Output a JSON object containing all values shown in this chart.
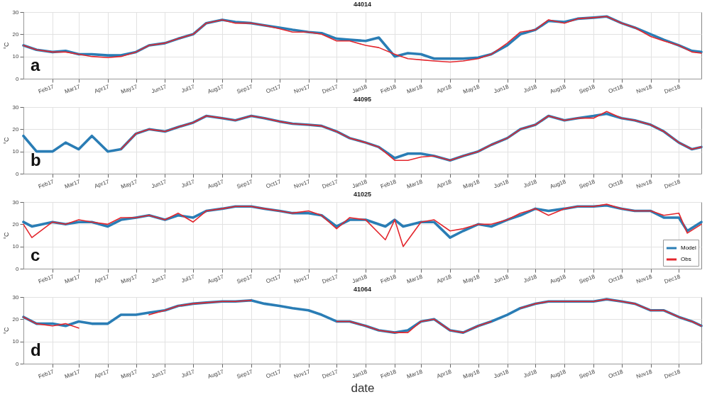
{
  "chart_data": [
    {
      "type": "line",
      "title": "44014",
      "ylabel": "°C",
      "annotations": [
        "a"
      ],
      "grid": true,
      "x": [
        "2017-01-01",
        "2017-01-15",
        "2017-02-01",
        "2017-02-15",
        "2017-03-01",
        "2017-03-15",
        "2017-04-01",
        "2017-04-15",
        "2017-05-01",
        "2017-05-15",
        "2017-06-01",
        "2017-06-15",
        "2017-07-01",
        "2017-07-15",
        "2017-08-01",
        "2017-08-15",
        "2017-09-01",
        "2017-09-15",
        "2017-10-01",
        "2017-10-15",
        "2017-11-01",
        "2017-11-15",
        "2017-12-01",
        "2017-12-15",
        "2018-01-01",
        "2018-01-15",
        "2018-02-01",
        "2018-02-15",
        "2018-03-01",
        "2018-03-15",
        "2018-04-01",
        "2018-04-15",
        "2018-05-01",
        "2018-05-15",
        "2018-06-01",
        "2018-06-15",
        "2018-07-01",
        "2018-07-15",
        "2018-08-01",
        "2018-08-15",
        "2018-09-01",
        "2018-09-15",
        "2018-10-01",
        "2018-10-15",
        "2018-11-01",
        "2018-11-15",
        "2018-12-01",
        "2018-12-15",
        "2018-12-25"
      ],
      "xlim": [
        "2017-01-01",
        "2018-12-25"
      ],
      "ylim": [
        0,
        30
      ],
      "yticks": [
        0,
        10,
        20,
        30
      ],
      "xticks": [
        {
          "value": "2017-02-01",
          "label": "Feb17"
        },
        {
          "value": "2017-03-01",
          "label": "Mar17"
        },
        {
          "value": "2017-04-01",
          "label": "Apr17"
        },
        {
          "value": "2017-05-01",
          "label": "May17"
        },
        {
          "value": "2017-06-01",
          "label": "Jun17"
        },
        {
          "value": "2017-07-01",
          "label": "Jul17"
        },
        {
          "value": "2017-08-01",
          "label": "Aug17"
        },
        {
          "value": "2017-09-01",
          "label": "Sep17"
        },
        {
          "value": "2017-10-01",
          "label": "Oct17"
        },
        {
          "value": "2017-11-01",
          "label": "Nov17"
        },
        {
          "value": "2017-12-01",
          "label": "Dec17"
        },
        {
          "value": "2018-01-01",
          "label": "Jan18"
        },
        {
          "value": "2018-02-01",
          "label": "Feb18"
        },
        {
          "value": "2018-03-01",
          "label": "Mar18"
        },
        {
          "value": "2018-04-01",
          "label": "Apr18"
        },
        {
          "value": "2018-05-01",
          "label": "May18"
        },
        {
          "value": "2018-06-01",
          "label": "Jun18"
        },
        {
          "value": "2018-07-01",
          "label": "Jul18"
        },
        {
          "value": "2018-08-01",
          "label": "Aug18"
        },
        {
          "value": "2018-09-01",
          "label": "Sep18"
        },
        {
          "value": "2018-10-01",
          "label": "Oct18"
        },
        {
          "value": "2018-11-01",
          "label": "Nov18"
        },
        {
          "value": "2018-12-01",
          "label": "Dec18"
        }
      ],
      "series": [
        {
          "color": "#2a7db5",
          "values": [
            15,
            13,
            12,
            12.5,
            11,
            11,
            10.5,
            10.5,
            12,
            15,
            16,
            18,
            20,
            25,
            26.5,
            25.5,
            25,
            24,
            23,
            22,
            21,
            20.5,
            18,
            17.5,
            17,
            18.5,
            10,
            11.5,
            11,
            9,
            9,
            9,
            9.5,
            11,
            15,
            20,
            22,
            26,
            25.5,
            27,
            27.5,
            28,
            25,
            23,
            20,
            17.5,
            15,
            12.5,
            12
          ]
        },
        {
          "color": "#e3262d",
          "values": [
            15,
            13,
            12,
            12,
            11,
            10,
            9.5,
            10,
            12,
            15,
            16,
            18,
            20,
            25,
            26.5,
            25,
            25,
            24,
            22.5,
            21,
            21,
            20,
            17,
            17,
            15,
            14,
            11,
            9,
            8.5,
            8,
            7.5,
            8,
            9,
            11,
            16,
            21,
            22,
            26.5,
            25,
            27,
            27.5,
            28,
            25,
            23,
            19,
            17,
            15,
            12,
            11.5
          ]
        }
      ]
    },
    {
      "type": "line",
      "title": "44095",
      "ylabel": "°C",
      "annotations": [
        "b"
      ],
      "grid": true,
      "x": [
        "2017-01-01",
        "2017-01-15",
        "2017-02-01",
        "2017-02-15",
        "2017-03-01",
        "2017-03-15",
        "2017-04-01",
        "2017-04-15",
        "2017-05-01",
        "2017-05-15",
        "2017-06-01",
        "2017-06-15",
        "2017-07-01",
        "2017-07-15",
        "2017-08-01",
        "2017-08-15",
        "2017-09-01",
        "2017-09-15",
        "2017-10-01",
        "2017-10-15",
        "2017-11-01",
        "2017-11-15",
        "2017-12-01",
        "2017-12-15",
        "2018-01-01",
        "2018-01-15",
        "2018-02-01",
        "2018-02-15",
        "2018-03-01",
        "2018-03-15",
        "2018-04-01",
        "2018-04-15",
        "2018-05-01",
        "2018-05-15",
        "2018-06-01",
        "2018-06-15",
        "2018-07-01",
        "2018-07-15",
        "2018-08-01",
        "2018-08-15",
        "2018-09-01",
        "2018-09-15",
        "2018-10-01",
        "2018-10-15",
        "2018-11-01",
        "2018-11-15",
        "2018-12-01",
        "2018-12-15",
        "2018-12-25"
      ],
      "xlim": [
        "2017-01-01",
        "2018-12-25"
      ],
      "ylim": [
        0,
        30
      ],
      "yticks": [
        0,
        10,
        20,
        30
      ],
      "xticks": [
        {
          "value": "2017-02-01",
          "label": "Feb17"
        },
        {
          "value": "2017-03-01",
          "label": "Mar17"
        },
        {
          "value": "2017-04-01",
          "label": "Apr17"
        },
        {
          "value": "2017-05-01",
          "label": "May17"
        },
        {
          "value": "2017-06-01",
          "label": "Jun17"
        },
        {
          "value": "2017-07-01",
          "label": "Jul17"
        },
        {
          "value": "2017-08-01",
          "label": "Aug17"
        },
        {
          "value": "2017-09-01",
          "label": "Sep17"
        },
        {
          "value": "2017-10-01",
          "label": "Oct17"
        },
        {
          "value": "2017-11-01",
          "label": "Nov17"
        },
        {
          "value": "2017-12-01",
          "label": "Dec17"
        },
        {
          "value": "2018-01-01",
          "label": "Jan18"
        },
        {
          "value": "2018-02-01",
          "label": "Feb18"
        },
        {
          "value": "2018-03-01",
          "label": "Mar18"
        },
        {
          "value": "2018-04-01",
          "label": "Apr18"
        },
        {
          "value": "2018-05-01",
          "label": "May18"
        },
        {
          "value": "2018-06-01",
          "label": "Jun18"
        },
        {
          "value": "2018-07-01",
          "label": "Jul18"
        },
        {
          "value": "2018-08-01",
          "label": "Aug18"
        },
        {
          "value": "2018-09-01",
          "label": "Sep18"
        },
        {
          "value": "2018-10-01",
          "label": "Oct18"
        },
        {
          "value": "2018-11-01",
          "label": "Nov18"
        },
        {
          "value": "2018-12-01",
          "label": "Dec18"
        }
      ],
      "series": [
        {
          "color": "#2a7db5",
          "values": [
            17,
            10,
            10,
            14,
            11,
            17,
            10,
            11,
            18,
            20,
            19,
            21,
            23,
            26,
            25,
            24,
            26,
            25,
            23.5,
            22.5,
            22,
            21.5,
            19,
            16,
            14,
            12,
            7,
            9,
            9,
            8,
            6,
            8,
            10,
            13,
            16,
            20,
            22,
            26,
            24,
            25,
            26,
            27,
            25,
            24,
            22,
            19,
            14,
            11,
            12
          ]
        },
        {
          "color": "#e3262d",
          "values": [
            null,
            null,
            null,
            null,
            null,
            null,
            null,
            11,
            18,
            20,
            19,
            21,
            23,
            26,
            25,
            24,
            26,
            25,
            23.5,
            22.5,
            22,
            21.5,
            19,
            16,
            14,
            12,
            6,
            6,
            7.5,
            8,
            6,
            8,
            10,
            13,
            16,
            20,
            22,
            26,
            24,
            25,
            25,
            28,
            25,
            24,
            22,
            19,
            14,
            11,
            12
          ]
        }
      ]
    },
    {
      "type": "line",
      "title": "41025",
      "ylabel": "°C",
      "annotations": [
        "c"
      ],
      "grid": true,
      "legend": "bottom right",
      "x": [
        "2017-01-01",
        "2017-01-10",
        "2017-02-01",
        "2017-02-15",
        "2017-03-01",
        "2017-03-15",
        "2017-04-01",
        "2017-04-15",
        "2017-05-01",
        "2017-05-15",
        "2017-06-01",
        "2017-06-15",
        "2017-07-01",
        "2017-07-15",
        "2017-08-01",
        "2017-08-15",
        "2017-09-01",
        "2017-09-15",
        "2017-10-01",
        "2017-10-15",
        "2017-11-01",
        "2017-11-15",
        "2017-12-01",
        "2017-12-15",
        "2018-01-01",
        "2018-01-22",
        "2018-02-01",
        "2018-02-10",
        "2018-03-01",
        "2018-03-15",
        "2018-04-01",
        "2018-04-15",
        "2018-05-01",
        "2018-05-15",
        "2018-06-01",
        "2018-06-15",
        "2018-07-01",
        "2018-07-15",
        "2018-08-01",
        "2018-08-15",
        "2018-09-01",
        "2018-09-15",
        "2018-10-01",
        "2018-10-15",
        "2018-11-01",
        "2018-11-15",
        "2018-12-01",
        "2018-12-10",
        "2018-12-25"
      ],
      "xlim": [
        "2017-01-01",
        "2018-12-25"
      ],
      "ylim": [
        0,
        30
      ],
      "yticks": [
        0,
        10,
        20,
        30
      ],
      "xticks": [
        {
          "value": "2017-02-01",
          "label": "Feb17"
        },
        {
          "value": "2017-03-01",
          "label": "Mar17"
        },
        {
          "value": "2017-04-01",
          "label": "Apr17"
        },
        {
          "value": "2017-05-01",
          "label": "May17"
        },
        {
          "value": "2017-06-01",
          "label": "Jun17"
        },
        {
          "value": "2017-07-01",
          "label": "Jul17"
        },
        {
          "value": "2017-08-01",
          "label": "Aug17"
        },
        {
          "value": "2017-09-01",
          "label": "Sep17"
        },
        {
          "value": "2017-10-01",
          "label": "Oct17"
        },
        {
          "value": "2017-11-01",
          "label": "Nov17"
        },
        {
          "value": "2017-12-01",
          "label": "Dec17"
        },
        {
          "value": "2018-01-01",
          "label": "Jan18"
        },
        {
          "value": "2018-02-01",
          "label": "Feb18"
        },
        {
          "value": "2018-03-01",
          "label": "Mar18"
        },
        {
          "value": "2018-04-01",
          "label": "Apr18"
        },
        {
          "value": "2018-05-01",
          "label": "May18"
        },
        {
          "value": "2018-06-01",
          "label": "Jun18"
        },
        {
          "value": "2018-07-01",
          "label": "Jul18"
        },
        {
          "value": "2018-08-01",
          "label": "Aug18"
        },
        {
          "value": "2018-09-01",
          "label": "Sep18"
        },
        {
          "value": "2018-10-01",
          "label": "Oct18"
        },
        {
          "value": "2018-11-01",
          "label": "Nov18"
        },
        {
          "value": "2018-12-01",
          "label": "Dec18"
        }
      ],
      "series": [
        {
          "name": "Model",
          "color": "#2a7db5",
          "values": [
            21,
            19,
            21,
            20,
            21,
            21,
            19,
            22,
            23,
            24,
            22,
            24,
            23,
            26,
            27,
            28,
            28,
            27,
            26,
            25,
            25,
            24,
            19,
            22,
            22,
            19,
            22,
            19,
            21,
            21,
            14,
            17,
            20,
            19,
            22,
            24,
            27,
            26,
            27,
            28,
            28,
            28.5,
            27,
            26,
            26,
            23,
            23,
            17,
            21
          ]
        },
        {
          "name": "Obs",
          "color": "#e3262d",
          "values": [
            20,
            14,
            21,
            20,
            22,
            21,
            20,
            23,
            23,
            24,
            22,
            25,
            21,
            26,
            27,
            28,
            28,
            27,
            26,
            25,
            26,
            24,
            18,
            23,
            22,
            13,
            22,
            10,
            21,
            22,
            17,
            18,
            20,
            20,
            22,
            25,
            27,
            24,
            27,
            28,
            28,
            29,
            27,
            26,
            26,
            24,
            25,
            16,
            20
          ]
        }
      ]
    },
    {
      "type": "line",
      "title": "41064",
      "xlabel": "date",
      "ylabel": "°C",
      "annotations": [
        "d"
      ],
      "grid": true,
      "x": [
        "2017-01-01",
        "2017-01-15",
        "2017-02-01",
        "2017-02-15",
        "2017-03-01",
        "2017-03-15",
        "2017-04-01",
        "2017-04-15",
        "2017-05-01",
        "2017-05-15",
        "2017-06-01",
        "2017-06-15",
        "2017-07-01",
        "2017-07-15",
        "2017-08-01",
        "2017-08-15",
        "2017-09-01",
        "2017-09-15",
        "2017-10-01",
        "2017-10-15",
        "2017-11-01",
        "2017-11-15",
        "2017-12-01",
        "2017-12-15",
        "2018-01-01",
        "2018-01-15",
        "2018-02-01",
        "2018-02-15",
        "2018-03-01",
        "2018-03-15",
        "2018-04-01",
        "2018-04-15",
        "2018-05-01",
        "2018-05-15",
        "2018-06-01",
        "2018-06-15",
        "2018-07-01",
        "2018-07-15",
        "2018-08-01",
        "2018-08-15",
        "2018-09-01",
        "2018-09-15",
        "2018-10-01",
        "2018-10-15",
        "2018-11-01",
        "2018-11-15",
        "2018-12-01",
        "2018-12-15",
        "2018-12-25"
      ],
      "xlim": [
        "2017-01-01",
        "2018-12-25"
      ],
      "ylim": [
        0,
        30
      ],
      "yticks": [
        0,
        10,
        20,
        30
      ],
      "xticks": [
        {
          "value": "2017-02-01",
          "label": "Feb17"
        },
        {
          "value": "2017-03-01",
          "label": "Mar17"
        },
        {
          "value": "2017-04-01",
          "label": "Apr17"
        },
        {
          "value": "2017-05-01",
          "label": "May17"
        },
        {
          "value": "2017-06-01",
          "label": "Jun17"
        },
        {
          "value": "2017-07-01",
          "label": "Jul17"
        },
        {
          "value": "2017-08-01",
          "label": "Aug17"
        },
        {
          "value": "2017-09-01",
          "label": "Sep17"
        },
        {
          "value": "2017-10-01",
          "label": "Oct17"
        },
        {
          "value": "2017-11-01",
          "label": "Nov17"
        },
        {
          "value": "2017-12-01",
          "label": "Dec17"
        },
        {
          "value": "2018-01-01",
          "label": "Jan18"
        },
        {
          "value": "2018-02-01",
          "label": "Feb18"
        },
        {
          "value": "2018-03-01",
          "label": "Mar18"
        },
        {
          "value": "2018-04-01",
          "label": "Apr18"
        },
        {
          "value": "2018-05-01",
          "label": "May18"
        },
        {
          "value": "2018-06-01",
          "label": "Jun18"
        },
        {
          "value": "2018-07-01",
          "label": "Jul18"
        },
        {
          "value": "2018-08-01",
          "label": "Aug18"
        },
        {
          "value": "2018-09-01",
          "label": "Sep18"
        },
        {
          "value": "2018-10-01",
          "label": "Oct18"
        },
        {
          "value": "2018-11-01",
          "label": "Nov18"
        },
        {
          "value": "2018-12-01",
          "label": "Dec18"
        }
      ],
      "series": [
        {
          "color": "#2a7db5",
          "values": [
            21,
            18,
            18,
            17,
            19,
            18,
            18,
            22,
            22,
            23,
            24,
            26,
            27,
            27.5,
            28,
            28,
            28.5,
            27,
            26,
            25,
            24,
            22,
            19,
            19,
            17,
            15,
            14,
            15,
            19,
            20,
            15,
            14,
            17,
            19,
            22,
            25,
            27,
            28,
            28,
            28,
            28,
            29,
            28,
            27,
            24,
            24,
            21,
            19,
            17
          ]
        },
        {
          "color": "#e3262d",
          "values": [
            21,
            18,
            17,
            18,
            16,
            null,
            null,
            null,
            null,
            22,
            24,
            26,
            27,
            27.5,
            28,
            28,
            28.5,
            null,
            null,
            null,
            null,
            null,
            19,
            19,
            17,
            15,
            14,
            14,
            19,
            20,
            15,
            14,
            17,
            19,
            null,
            25,
            27,
            28,
            28,
            28,
            28,
            29,
            28,
            27,
            24,
            24,
            21,
            19,
            17
          ]
        }
      ]
    }
  ]
}
